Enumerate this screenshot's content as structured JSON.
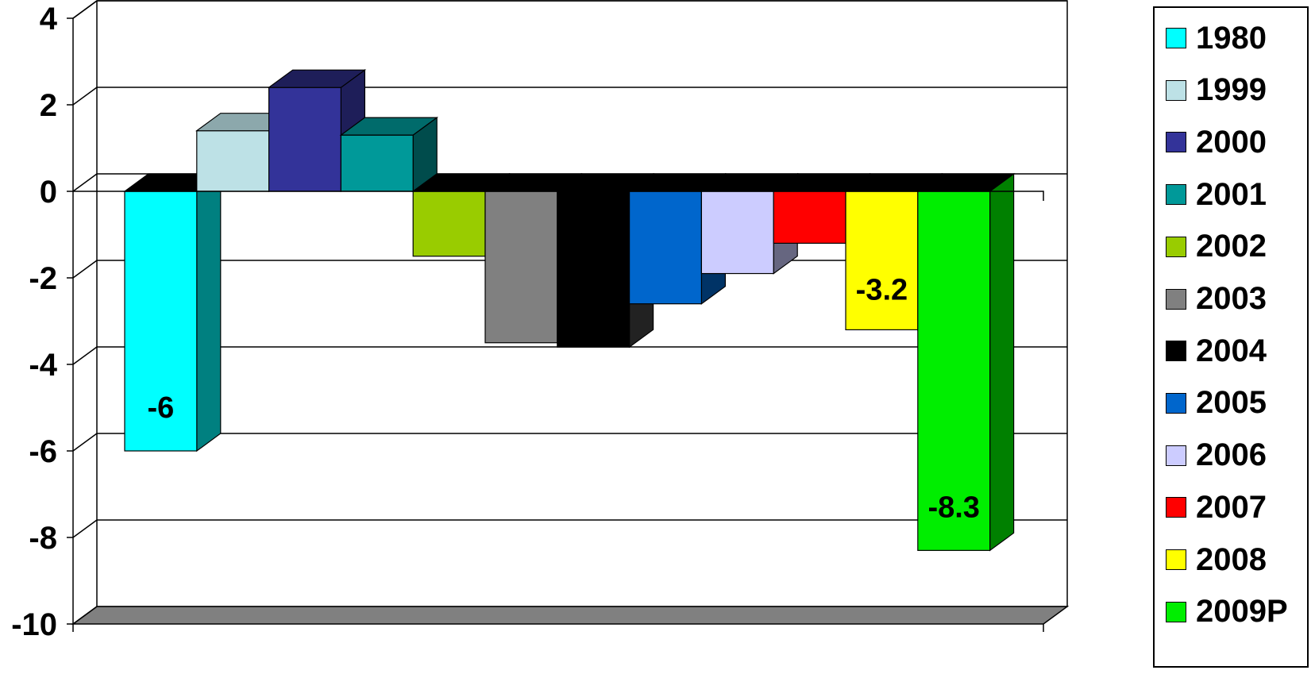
{
  "chart_data": {
    "type": "bar",
    "three_d": true,
    "categories": [
      "1980",
      "1999",
      "2000",
      "2001",
      "2002",
      "2003",
      "2004",
      "2005",
      "2006",
      "2007",
      "2008",
      "2009P"
    ],
    "values": [
      -6.0,
      1.4,
      2.4,
      1.3,
      -1.5,
      -3.5,
      -3.6,
      -2.6,
      -1.9,
      -1.2,
      -3.2,
      -8.3
    ],
    "data_labels": {
      "0": "-6",
      "10": "-3.2",
      "11": "-8.3"
    },
    "colors": [
      "#00FFFF",
      "#BDE1E6",
      "#333399",
      "#009999",
      "#99CC00",
      "#808080",
      "#000000",
      "#0066CC",
      "#CCCCFF",
      "#FF0000",
      "#FFFF00",
      "#00EE00"
    ],
    "side_colors": [
      "#008080",
      "#8CA8AC",
      "#1E1E59",
      "#004C4C",
      "#5C7A00",
      "#4D4D4D",
      "#222222",
      "#003366",
      "#666680",
      "#800000",
      "#999900",
      "#008000"
    ],
    "top_colors": [
      "#000000",
      "#8CA8AC",
      "#1E1E59",
      "#006B6B",
      "#000000",
      "#000000",
      "#000000",
      "#000000",
      "#000000",
      "#000000",
      "#000000",
      "#000000"
    ],
    "yticks": [
      "4",
      "2",
      "0",
      "-2",
      "-4",
      "-6",
      "-8",
      "-10"
    ],
    "ylim": [
      -10,
      4
    ],
    "title": "",
    "xlabel": "",
    "ylabel": "",
    "grid": true,
    "legend_position": "right"
  }
}
